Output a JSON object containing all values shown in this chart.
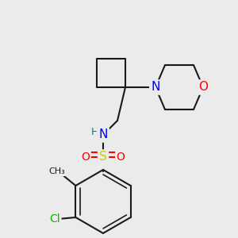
{
  "background_color": "#ebebeb",
  "bond_color": "#1a1a1a",
  "bond_width": 1.5,
  "colors": {
    "C": "#1a1a1a",
    "N": "#0000ff",
    "O": "#ff0000",
    "S": "#cccc00",
    "Cl": "#00bb00",
    "H": "#008080"
  },
  "font_size": 10,
  "font_size_small": 9
}
